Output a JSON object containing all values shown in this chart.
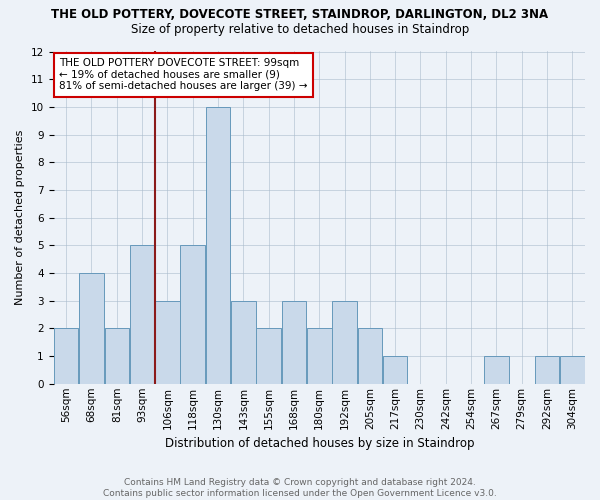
{
  "title": "THE OLD POTTERY, DOVECOTE STREET, STAINDROP, DARLINGTON, DL2 3NA",
  "subtitle": "Size of property relative to detached houses in Staindrop",
  "xlabel": "Distribution of detached houses by size in Staindrop",
  "ylabel": "Number of detached properties",
  "footnote": "Contains HM Land Registry data © Crown copyright and database right 2024.\nContains public sector information licensed under the Open Government Licence v3.0.",
  "bin_labels": [
    "56sqm",
    "68sqm",
    "81sqm",
    "93sqm",
    "106sqm",
    "118sqm",
    "130sqm",
    "143sqm",
    "155sqm",
    "168sqm",
    "180sqm",
    "192sqm",
    "205sqm",
    "217sqm",
    "230sqm",
    "242sqm",
    "254sqm",
    "267sqm",
    "279sqm",
    "292sqm",
    "304sqm"
  ],
  "bar_heights": [
    2,
    4,
    2,
    5,
    3,
    5,
    10,
    3,
    2,
    3,
    2,
    3,
    2,
    1,
    0,
    0,
    0,
    1,
    0,
    1,
    1
  ],
  "bar_color": "#c9d9ea",
  "bar_edge_color": "#6699bb",
  "vline_x_index": 3,
  "vline_color": "#8b1a1a",
  "ylim": [
    0,
    12
  ],
  "yticks": [
    0,
    1,
    2,
    3,
    4,
    5,
    6,
    7,
    8,
    9,
    10,
    11,
    12
  ],
  "annotation_text": "THE OLD POTTERY DOVECOTE STREET: 99sqm\n← 19% of detached houses are smaller (9)\n81% of semi-detached houses are larger (39) →",
  "annotation_box_color": "#ffffff",
  "annotation_box_edge": "#cc0000",
  "background_color": "#edf2f8",
  "title_fontsize": 8.5,
  "subtitle_fontsize": 8.5,
  "ylabel_fontsize": 8,
  "xlabel_fontsize": 8.5,
  "tick_fontsize": 7.5,
  "annotation_fontsize": 7.5,
  "footnote_fontsize": 6.5,
  "footnote_color": "#666666"
}
